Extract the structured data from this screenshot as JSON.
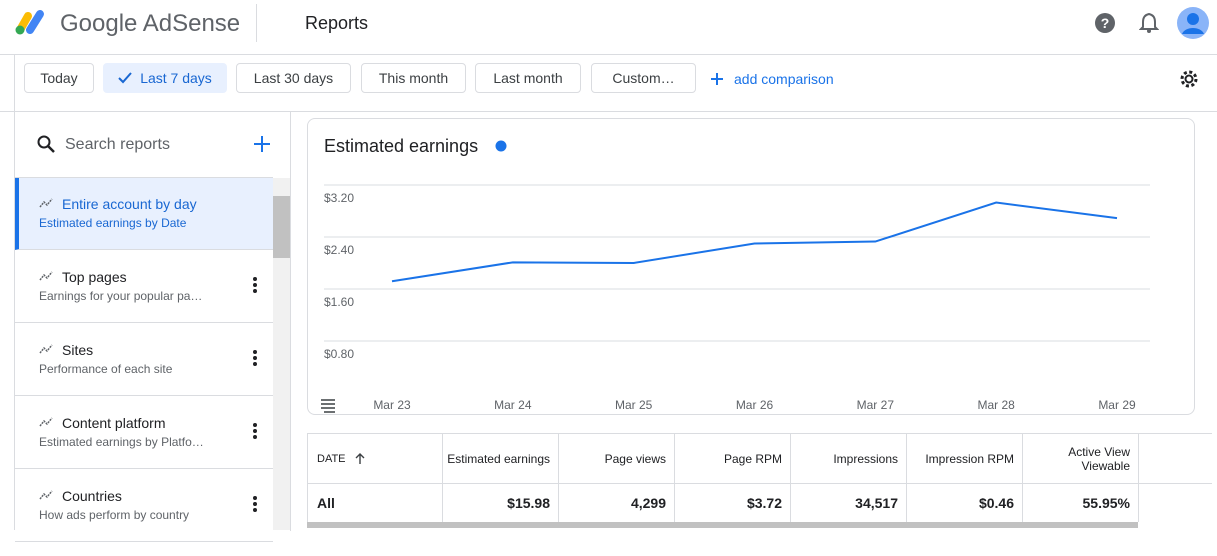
{
  "header": {
    "logo_text": "Google AdSense",
    "page_title": "Reports"
  },
  "date_filters": [
    "Today",
    "Last 7 days",
    "Last 30 days",
    "This month",
    "Last month",
    "Custom…"
  ],
  "add_comparison": "add comparison",
  "sidebar": {
    "search_placeholder": "Search reports",
    "reports": [
      {
        "title": "Entire account by day",
        "subtitle": "Estimated earnings by Date"
      },
      {
        "title": "Top pages",
        "subtitle": "Earnings for your popular pa…"
      },
      {
        "title": "Sites",
        "subtitle": "Performance of each site"
      },
      {
        "title": "Content platform",
        "subtitle": "Estimated earnings by Platfo…"
      },
      {
        "title": "Countries",
        "subtitle": "How ads perform by country"
      }
    ]
  },
  "chart_data": {
    "type": "line",
    "title": "Estimated earnings",
    "color": "#1a73e8",
    "categories": [
      "Mar 23",
      "Mar 24",
      "Mar 25",
      "Mar 26",
      "Mar 27",
      "Mar 28",
      "Mar 29"
    ],
    "values": [
      1.72,
      2.01,
      2.0,
      2.3,
      2.33,
      2.93,
      2.69
    ],
    "ylim": [
      0,
      3.2
    ],
    "yticks": [
      {
        "value": 0.8,
        "label": "$0.80"
      },
      {
        "value": 1.6,
        "label": "$1.60"
      },
      {
        "value": 2.4,
        "label": "$2.40"
      },
      {
        "value": 3.2,
        "label": "$3.20"
      }
    ],
    "grid": true
  },
  "table": {
    "columns": [
      "DATE",
      "Estimated earnings",
      "Page views",
      "Page RPM",
      "Impressions",
      "Impression RPM",
      "Active View Viewable"
    ],
    "rows": [
      [
        "All",
        "$15.98",
        "4,299",
        "$3.72",
        "34,517",
        "$0.46",
        "55.95%"
      ]
    ]
  }
}
